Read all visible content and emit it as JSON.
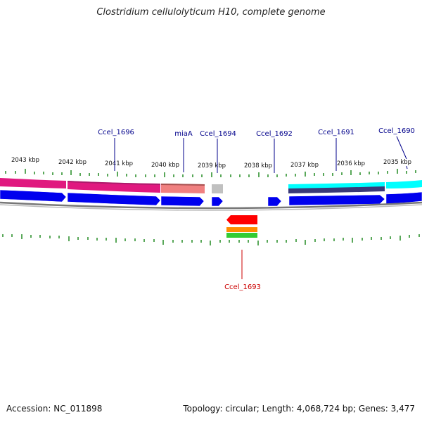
{
  "title": "Clostridium cellulolyticum H10, complete genome",
  "footer": {
    "accession": "Accession: NC_011898",
    "summary": "Topology: circular; Length: 4,068,724 bp; Genes: 3,477"
  },
  "kbp_labels": [
    "2043 kbp",
    "2042 kbp",
    "2041 kbp",
    "2040 kbp",
    "2039 kbp",
    "2038 kbp",
    "2037 kbp",
    "2036 kbp",
    "2035 kbp"
  ],
  "gene_labels": {
    "ccel_1696": "Ccel_1696",
    "miaA": "miaA",
    "ccel_1694": "Ccel_1694",
    "ccel_1692": "Ccel_1692",
    "ccel_1691": "Ccel_1691",
    "ccel_1690": "Ccel_1690",
    "ccel_1693": "Ccel_1693"
  },
  "colors": {
    "magenta": "#e0197f",
    "salmon": "#f08080",
    "grey_cog": "#c0c0c0",
    "cyan": "#00ffff",
    "navy": "#2a2a6e",
    "blue": "#0000ee",
    "red": "#ff0000",
    "orange": "#ff8c00",
    "green": "#33cc33",
    "tick_green": "#228b22",
    "label_blue": "#00008b",
    "label_red": "#cc0000"
  }
}
